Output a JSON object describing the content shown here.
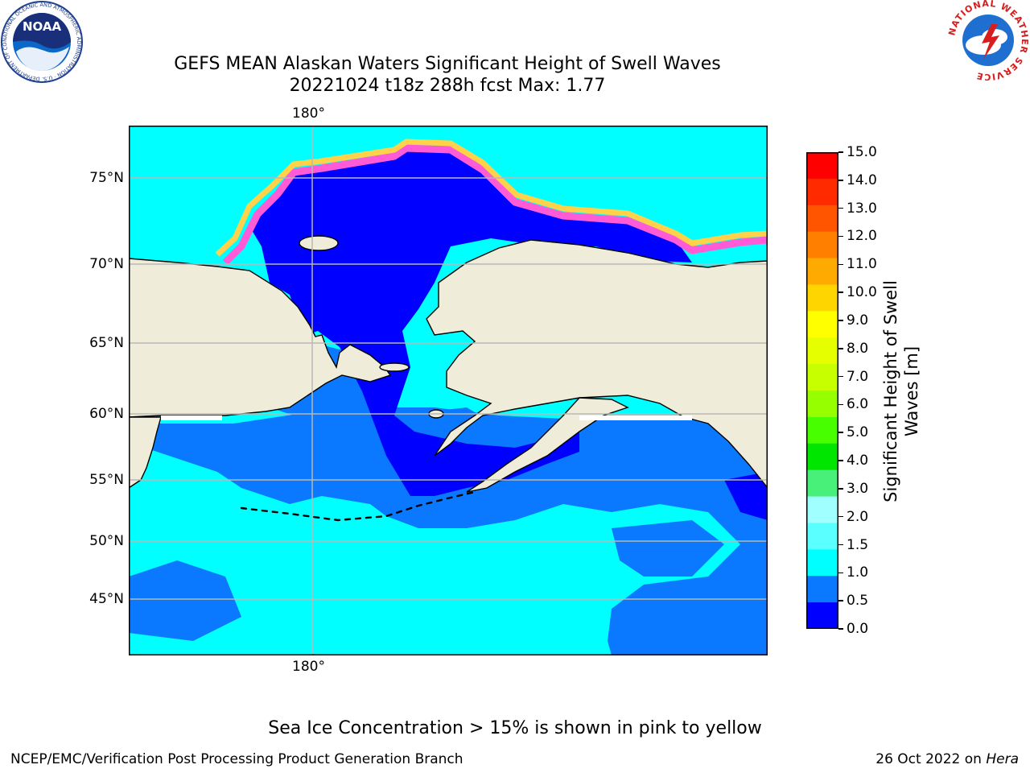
{
  "title": {
    "line1": "GEFS MEAN Alaskan Waters Significant Height of Swell Waves",
    "line2": "20221024 t18z 288h fcst    Max: 1.77"
  },
  "map": {
    "lon_label_top": "180°",
    "lon_label_bottom": "180°",
    "lat_labels": [
      "75°N",
      "70°N",
      "65°N",
      "60°N",
      "55°N",
      "50°N",
      "45°N"
    ],
    "colors": {
      "land": "#efedd9",
      "band_0_05": "#0000ff",
      "band_05_10": "#0a78ff",
      "band_10_15": "#00ffff",
      "ice_edge_pink": "#ff5bd6",
      "ice_edge_yellow": "#ffd24a",
      "grid": "#b8b8b8"
    }
  },
  "colorbar": {
    "label": "Significant Height of Swell Waves [m]",
    "label_line1": "Significant Height of Swell",
    "label_line2": "Waves [m]",
    "ticks": [
      "15.0",
      "14.0",
      "13.0",
      "12.0",
      "11.0",
      "10.0",
      "9.0",
      "8.0",
      "7.0",
      "6.0",
      "5.0",
      "4.0",
      "3.0",
      "2.0",
      "1.5",
      "1.0",
      "0.5",
      "0.0"
    ],
    "colors_top_to_bottom": [
      "#ff0000",
      "#ff2a00",
      "#ff5500",
      "#ff8000",
      "#ffaa00",
      "#ffd500",
      "#ffff00",
      "#e6ff00",
      "#c8ff00",
      "#96ff00",
      "#48ff00",
      "#00e600",
      "#48f07a",
      "#a0ffff",
      "#5affff",
      "#00ffff",
      "#0a78ff",
      "#0000ff"
    ]
  },
  "footer": {
    "note": "Sea Ice Concentration > 15% is shown in pink to yellow",
    "left": "NCEP/EMC/Verification Post Processing Product Generation Branch",
    "right_date": "26 Oct 2022 on ",
    "right_host": "Hera"
  },
  "logos": {
    "noaa_text": "NOAA",
    "noaa_ring": "NATIONAL OCEANIC AND ATMOSPHERIC ADMINISTRATION · U.S. DEPARTMENT OF COMMERCE",
    "nws_ring": "NATIONAL WEATHER SERVICE"
  }
}
